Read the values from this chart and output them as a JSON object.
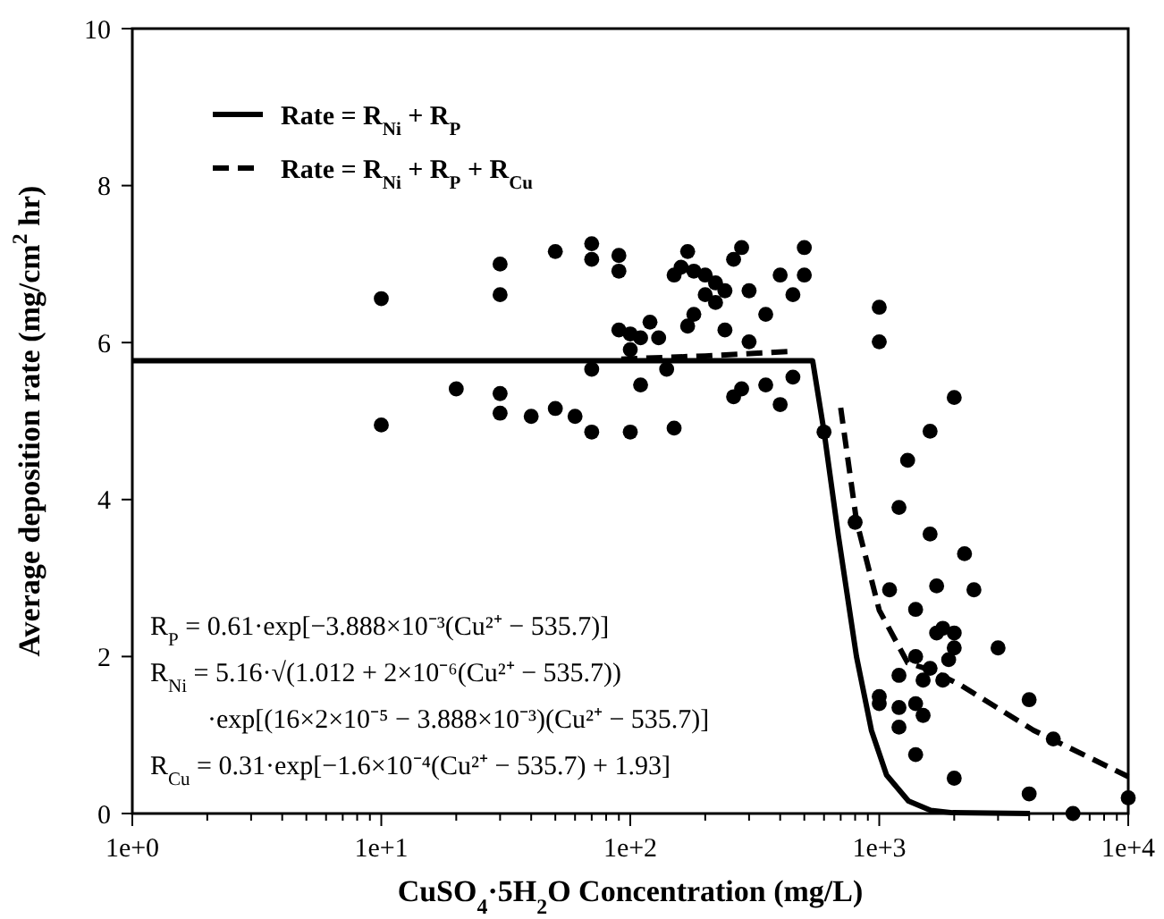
{
  "chart_data": {
    "type": "scatter",
    "xlabel": "CuSO$_{4}$·5H$_{2}$O Concentration (mg/L)",
    "ylabel": "Average deposition rate (mg/cm$^{2}$ hr)",
    "log": "x",
    "xlim": [
      1,
      10000
    ],
    "ylim": [
      0,
      10
    ],
    "xticks": [
      {
        "value": 1,
        "label": "1e+0"
      },
      {
        "value": 2,
        "label": null
      },
      {
        "value": 3,
        "label": null
      },
      {
        "value": 4,
        "label": null
      },
      {
        "value": 5,
        "label": null
      },
      {
        "value": 6,
        "label": null
      },
      {
        "value": 7,
        "label": null
      },
      {
        "value": 8,
        "label": null
      },
      {
        "value": 9,
        "label": null
      },
      {
        "value": 10,
        "label": "1e+1"
      },
      {
        "value": 20,
        "label": null
      },
      {
        "value": 30,
        "label": null
      },
      {
        "value": 40,
        "label": null
      },
      {
        "value": 50,
        "label": null
      },
      {
        "value": 60,
        "label": null
      },
      {
        "value": 70,
        "label": null
      },
      {
        "value": 80,
        "label": null
      },
      {
        "value": 90,
        "label": null
      },
      {
        "value": 100,
        "label": "1e+2"
      },
      {
        "value": 200,
        "label": null
      },
      {
        "value": 300,
        "label": null
      },
      {
        "value": 400,
        "label": null
      },
      {
        "value": 500,
        "label": null
      },
      {
        "value": 600,
        "label": null
      },
      {
        "value": 700,
        "label": null
      },
      {
        "value": 800,
        "label": null
      },
      {
        "value": 900,
        "label": null
      },
      {
        "value": 1000,
        "label": "1e+3"
      },
      {
        "value": 2000,
        "label": null
      },
      {
        "value": 3000,
        "label": null
      },
      {
        "value": 4000,
        "label": null
      },
      {
        "value": 5000,
        "label": null
      },
      {
        "value": 6000,
        "label": null
      },
      {
        "value": 7000,
        "label": null
      },
      {
        "value": 8000,
        "label": null
      },
      {
        "value": 9000,
        "label": null
      },
      {
        "value": 10000,
        "label": "1e+4"
      }
    ],
    "yticks": [
      0,
      2,
      4,
      6,
      8,
      10
    ],
    "grid": false,
    "legend": "top left",
    "series": [
      {
        "color": "#000000",
        "marker": "circle",
        "x": [
          10,
          10,
          20,
          30,
          30,
          30,
          30,
          40,
          50,
          50,
          60,
          70,
          70,
          70,
          70,
          90,
          90,
          90,
          100,
          100,
          100,
          110,
          110,
          120,
          130,
          140,
          150,
          150,
          160,
          170,
          170,
          180,
          180,
          200,
          200,
          220,
          220,
          240,
          240,
          260,
          260,
          280,
          280,
          300,
          300,
          350,
          350,
          400,
          400,
          450,
          450,
          500,
          500,
          600,
          800,
          1000,
          1000,
          1000,
          1000,
          1100,
          1200,
          1200,
          1200,
          1200,
          1300,
          1400,
          1400,
          1400,
          1400,
          1500,
          1500,
          1600,
          1600,
          1600,
          1700,
          1700,
          1800,
          1800,
          1900,
          2000,
          2000,
          2000,
          2000,
          2200,
          2400,
          3000,
          4000,
          4000,
          5000,
          6000,
          10000
        ],
        "values": [
          6.56,
          4.95,
          5.41,
          7.0,
          6.61,
          5.35,
          5.1,
          5.06,
          7.16,
          5.16,
          5.06,
          7.26,
          7.06,
          5.66,
          4.86,
          7.11,
          6.91,
          6.16,
          6.11,
          5.91,
          4.86,
          6.06,
          5.46,
          6.26,
          6.06,
          5.66,
          6.86,
          4.91,
          6.96,
          7.16,
          6.21,
          6.36,
          6.91,
          6.86,
          6.61,
          6.76,
          6.51,
          6.66,
          6.16,
          7.06,
          5.31,
          7.21,
          5.41,
          6.66,
          6.01,
          6.36,
          5.46,
          6.86,
          5.21,
          6.61,
          5.56,
          7.21,
          6.86,
          4.86,
          3.71,
          6.45,
          6.01,
          1.4,
          1.49,
          2.85,
          3.9,
          1.76,
          1.1,
          1.35,
          4.5,
          2.6,
          1.4,
          0.75,
          2.0,
          1.25,
          1.7,
          4.87,
          3.56,
          1.85,
          2.9,
          2.3,
          2.36,
          1.7,
          1.96,
          5.3,
          2.3,
          2.11,
          0.45,
          3.31,
          2.85,
          2.11,
          1.45,
          0.25,
          0.95,
          0,
          0.2
        ]
      },
      {
        "type": "line",
        "name": "Rate = R$_{Ni}$ + R$_{P}$",
        "color": "#000000",
        "marker": "none",
        "line_style": "solid",
        "x": [
          1,
          540,
          600,
          685,
          810,
          930,
          1070,
          1310,
          1610,
          1970,
          4030
        ],
        "values": [
          5.77,
          5.77,
          4.87,
          3.54,
          2.0,
          1.06,
          0.49,
          0.16,
          0.04,
          0.01,
          0
        ]
      },
      {
        "type": "line",
        "name": "Rate = R$_{Ni}$ + R$_{P}$ + R$_{Cu}$",
        "color": "#000000",
        "marker": "none",
        "line_style": "dashed",
        "x": [
          92,
          200,
          454
        ],
        "values": [
          5.79,
          5.83,
          5.89
        ]
      },
      {
        "type": "line",
        "color": "#000000",
        "marker": "none",
        "line_style": "dashed",
        "x": [
          700,
          810,
          1000,
          1300,
          1600,
          2110,
          4170,
          10000
        ],
        "values": [
          5.17,
          3.73,
          2.59,
          1.92,
          1.83,
          1.64,
          1.06,
          0.47
        ]
      }
    ],
    "annotations": [
      "R$_{P}$ = 0.61·exp[−3.888×10⁻³(Cu²⁺ − 535.7)]",
      "R$_{Ni}$ = 5.16·√(1.012 + 2×10⁻⁶(Cu²⁺ − 535.7))",
      "·exp[(16×2×10⁻⁵ − 3.888×10⁻³)(Cu²⁺ − 535.7)]",
      "R$_{Cu}$ = 0.31·exp[−1.6×10⁻⁴(Cu²⁺ − 535.7) + 1.93]"
    ]
  }
}
